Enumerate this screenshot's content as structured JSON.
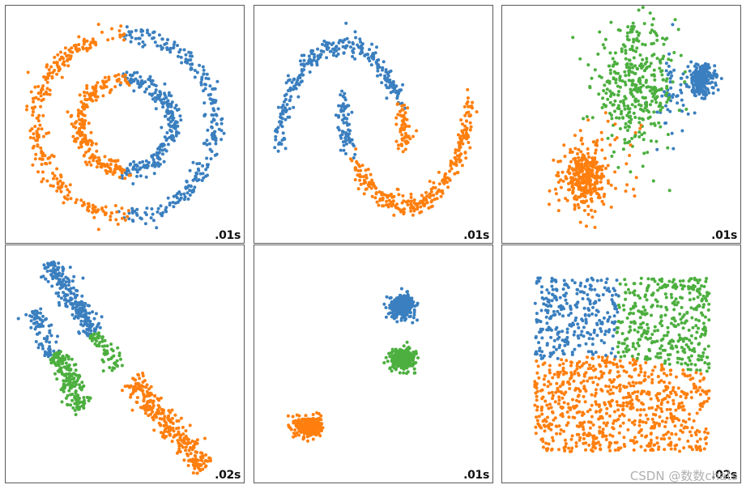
{
  "colors": {
    "blue": "#3a7fbf",
    "orange": "#ff7f0e",
    "green": "#4caf3f"
  },
  "watermark": "CSDN @数数chats",
  "chart_data": [
    {
      "type": "scatter",
      "dataset": "circles",
      "timing_label": ".01s",
      "xlim": [
        -1.25,
        1.25
      ],
      "ylim": [
        -1.25,
        1.25
      ],
      "grid": false,
      "clusters": [
        {
          "color": "blue",
          "shape": "half-ring",
          "cx": 0,
          "cy": 0,
          "r": 1.0,
          "from_deg": -90,
          "to_deg": 90,
          "noise": 0.05,
          "n": 260
        },
        {
          "color": "orange",
          "shape": "half-ring",
          "cx": 0,
          "cy": 0,
          "r": 1.0,
          "from_deg": 90,
          "to_deg": 270,
          "noise": 0.05,
          "n": 260
        },
        {
          "color": "blue",
          "shape": "half-ring",
          "cx": 0,
          "cy": 0,
          "r": 0.5,
          "from_deg": -90,
          "to_deg": 90,
          "noise": 0.05,
          "n": 230
        },
        {
          "color": "orange",
          "shape": "half-ring",
          "cx": 0,
          "cy": 0,
          "r": 0.5,
          "from_deg": 90,
          "to_deg": 270,
          "noise": 0.05,
          "n": 230
        }
      ]
    },
    {
      "type": "scatter",
      "dataset": "moons",
      "timing_label": ".01s",
      "xlim": [
        -1.3,
        2.3
      ],
      "ylim": [
        -0.8,
        1.3
      ],
      "grid": false,
      "clusters": [
        {
          "color": "blue",
          "shape": "arc",
          "cx": 0,
          "cy": 0,
          "r": 1.0,
          "from_deg": 25,
          "to_deg": 180,
          "noise": 0.05,
          "n": 280
        },
        {
          "color": "orange",
          "shape": "arc",
          "cx": 0,
          "cy": 0,
          "r": 1.0,
          "from_deg": 0,
          "to_deg": 25,
          "noise": 0.05,
          "n": 60
        },
        {
          "color": "blue",
          "shape": "arc",
          "cx": 1,
          "cy": 0.5,
          "r": 1.0,
          "from_deg": 180,
          "to_deg": 212,
          "noise": 0.05,
          "n": 70
        },
        {
          "color": "orange",
          "shape": "arc",
          "cx": 1,
          "cy": 0.5,
          "r": 1.0,
          "from_deg": 212,
          "to_deg": 360,
          "noise": 0.05,
          "n": 270
        }
      ]
    },
    {
      "type": "scatter",
      "dataset": "varied",
      "timing_label": ".01s",
      "xlim": [
        -6,
        6
      ],
      "ylim": [
        -6,
        6
      ],
      "grid": false,
      "clusters": [
        {
          "color": "blue",
          "shape": "blob",
          "cx": 4.2,
          "cy": 2.4,
          "sx": 0.35,
          "sy": 0.4,
          "n": 220
        },
        {
          "color": "blue",
          "shape": "blob",
          "cx": 2.5,
          "cy": 1.5,
          "sx": 0.6,
          "sy": 1.5,
          "n": 50
        },
        {
          "color": "green",
          "shape": "blob",
          "cx": 0.7,
          "cy": 2.0,
          "sx": 1.1,
          "sy": 1.6,
          "n": 380
        },
        {
          "color": "orange",
          "shape": "blob",
          "cx": -2.0,
          "cy": -2.8,
          "sx": 0.55,
          "sy": 0.75,
          "n": 320
        },
        {
          "color": "orange",
          "shape": "blob",
          "cx": -1.0,
          "cy": -1.5,
          "sx": 1.2,
          "sy": 1.1,
          "n": 40
        }
      ]
    },
    {
      "type": "scatter",
      "dataset": "aniso",
      "timing_label": ".02s",
      "xlim": [
        -2.2,
        2.4
      ],
      "ylim": [
        -2.3,
        2.3
      ],
      "grid": false,
      "clusters": [
        {
          "color": "blue",
          "shape": "line",
          "x1": -1.45,
          "y1": 2.1,
          "x2": -0.55,
          "y2": 0.65,
          "width": 0.12,
          "n": 240
        },
        {
          "color": "blue",
          "shape": "line",
          "x1": -1.75,
          "y1": 1.1,
          "x2": -1.35,
          "y2": 0.2,
          "width": 0.1,
          "n": 80
        },
        {
          "color": "green",
          "shape": "line",
          "x1": -1.3,
          "y1": 0.25,
          "x2": -0.75,
          "y2": -0.95,
          "width": 0.12,
          "n": 180
        },
        {
          "color": "green",
          "shape": "line",
          "x1": -0.55,
          "y1": 0.65,
          "x2": -0.05,
          "y2": -0.1,
          "width": 0.09,
          "n": 60
        },
        {
          "color": "orange",
          "shape": "line",
          "x1": 0.2,
          "y1": -0.3,
          "x2": 1.7,
          "y2": -2.1,
          "width": 0.12,
          "n": 300
        }
      ]
    },
    {
      "type": "scatter",
      "dataset": "blobs",
      "timing_label": ".01s",
      "xlim": [
        -10,
        10
      ],
      "ylim": [
        -10,
        10
      ],
      "grid": false,
      "clusters": [
        {
          "color": "blue",
          "shape": "blob",
          "cx": 2.5,
          "cy": 5.2,
          "sx": 0.55,
          "sy": 0.5,
          "n": 300
        },
        {
          "color": "green",
          "shape": "blob",
          "cx": 2.5,
          "cy": 0.5,
          "sx": 0.55,
          "sy": 0.45,
          "n": 300
        },
        {
          "color": "orange",
          "shape": "blob",
          "cx": -5.8,
          "cy": -5.5,
          "sx": 0.55,
          "sy": 0.45,
          "n": 300
        }
      ]
    },
    {
      "type": "scatter",
      "dataset": "no_structure",
      "timing_label": ".02s",
      "xlim": [
        -0.15,
        1.15
      ],
      "ylim": [
        -0.15,
        1.15
      ],
      "grid": false,
      "regions": [
        {
          "color": "blue",
          "rule": "top-left"
        },
        {
          "color": "green",
          "rule": "top-right"
        },
        {
          "color": "orange",
          "rule": "bottom"
        }
      ],
      "n": 1400
    }
  ]
}
